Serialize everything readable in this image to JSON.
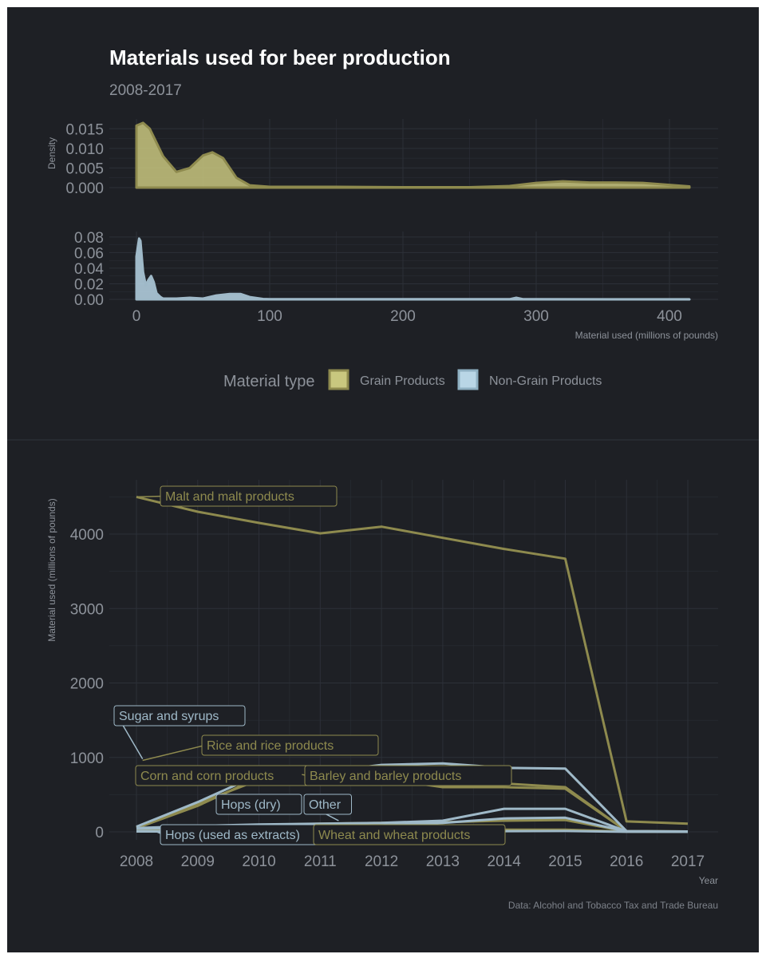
{
  "title": "Materials used for beer production",
  "subtitle": "2008-2017",
  "caption": "Data: Alcohol and Tobacco Tax and Trade Bureau",
  "colors": {
    "background": "#1e2025",
    "grid": "#2c3038",
    "text": "#8d929a",
    "title": "#ffffff",
    "grain": "#8e8a4e",
    "grain_fill": "#c9c77f",
    "nongrain": "#9fb9c8",
    "nongrain_fill": "#b9d6e6"
  },
  "legend": {
    "title": "Material type",
    "items": [
      {
        "label": "Grain Products",
        "color": "#c9c77f",
        "stroke": "#8e8a4e"
      },
      {
        "label": "Non-Grain Products",
        "color": "#b9d6e6",
        "stroke": "#8fb0c2"
      }
    ]
  },
  "chart_data": [
    {
      "type": "area",
      "panel": "density-grain",
      "ylabel": "Density",
      "xlim": [
        0,
        440
      ],
      "ylim": [
        0,
        0.0175
      ],
      "yticks": [
        0,
        0.005,
        0.01,
        0.015
      ],
      "ytick_labels": [
        "0.000",
        "0.005",
        "0.010",
        "0.015"
      ],
      "grid": true,
      "x": [
        0,
        5,
        10,
        20,
        30,
        40,
        50,
        57,
        65,
        75,
        85,
        100,
        150,
        200,
        250,
        280,
        300,
        320,
        340,
        360,
        380,
        400,
        415
      ],
      "y": [
        0.0158,
        0.0165,
        0.015,
        0.008,
        0.004,
        0.005,
        0.0082,
        0.009,
        0.0075,
        0.0025,
        0.0006,
        0.0002,
        0.0002,
        0.0001,
        0.0001,
        0.0004,
        0.0012,
        0.0016,
        0.0013,
        0.0013,
        0.0012,
        0.0007,
        0.0003
      ]
    },
    {
      "type": "area",
      "panel": "density-nongrain",
      "xlabel": "Material used (millions of pounds)",
      "xlim": [
        -22,
        440
      ],
      "xticks": [
        0,
        100,
        200,
        300,
        400
      ],
      "ylim": [
        0,
        0.087
      ],
      "yticks": [
        0,
        0.02,
        0.04,
        0.06,
        0.08
      ],
      "ytick_labels": [
        "0.00",
        "0.02",
        "0.04",
        "0.06",
        "0.08"
      ],
      "grid": true,
      "x": [
        0,
        2,
        3,
        5,
        7,
        9,
        11,
        13,
        15,
        18,
        20,
        30,
        40,
        50,
        60,
        70,
        78,
        85,
        95,
        100,
        200,
        280,
        285,
        290,
        300,
        415
      ],
      "y": [
        0.055,
        0.078,
        0.075,
        0.035,
        0.018,
        0.025,
        0.03,
        0.022,
        0.008,
        0.003,
        0.001,
        0.001,
        0.002,
        0.001,
        0.005,
        0.007,
        0.007,
        0.003,
        0.0005,
        0.0003,
        0.0002,
        0.0002,
        0.002,
        0.0003,
        0.0002,
        0.0001
      ]
    },
    {
      "type": "line",
      "panel": "timeseries",
      "xlabel": "Year",
      "ylabel": "Material used (millions of pounds)",
      "xlim": [
        2007.5,
        2017.4
      ],
      "ylim": [
        -120,
        4750
      ],
      "xticks": [
        2008,
        2009,
        2010,
        2011,
        2012,
        2013,
        2014,
        2015,
        2016,
        2017
      ],
      "yticks": [
        0,
        1000,
        2000,
        3000,
        4000
      ],
      "grid": true,
      "x": [
        2008,
        2009,
        2010,
        2011,
        2012,
        2013,
        2014,
        2015,
        2016,
        2017
      ],
      "series": [
        {
          "name": "Malt and malt products",
          "group": "Grain Products",
          "values": [
            4500,
            4300,
            4150,
            4010,
            4100,
            3950,
            3800,
            3670,
            140,
            110
          ]
        },
        {
          "name": "Corn and corn products",
          "group": "Grain Products",
          "values": [
            60,
            380,
            700,
            650,
            720,
            600,
            600,
            580,
            10,
            5
          ]
        },
        {
          "name": "Rice and rice products",
          "group": "Grain Products",
          "values": [
            50,
            350,
            730,
            720,
            730,
            620,
            650,
            600,
            10,
            5
          ]
        },
        {
          "name": "Barley and barley products",
          "group": "Grain Products",
          "values": [
            30,
            40,
            90,
            110,
            120,
            130,
            150,
            160,
            5,
            3
          ]
        },
        {
          "name": "Wheat and wheat products",
          "group": "Grain Products",
          "values": [
            20,
            20,
            25,
            25,
            30,
            30,
            30,
            30,
            2,
            2
          ]
        },
        {
          "name": "Sugar and syrups",
          "group": "Non-Grain Products",
          "values": [
            70,
            400,
            770,
            800,
            900,
            920,
            860,
            850,
            10,
            5
          ]
        },
        {
          "name": "Other",
          "group": "Non-Grain Products",
          "values": [
            50,
            80,
            100,
            110,
            120,
            150,
            310,
            310,
            8,
            4
          ]
        },
        {
          "name": "Hops (dry)",
          "group": "Non-Grain Products",
          "values": [
            40,
            50,
            60,
            70,
            90,
            120,
            180,
            190,
            5,
            3
          ]
        },
        {
          "name": "Hops (used as extracts)",
          "group": "Non-Grain Products",
          "values": [
            5,
            5,
            5,
            6,
            6,
            8,
            10,
            12,
            1,
            1
          ]
        }
      ],
      "labels": [
        {
          "series": "Malt and malt products",
          "text": "Malt and malt products",
          "at": [
            2008.0,
            4500
          ]
        },
        {
          "series": "Sugar and syrups",
          "text": "Sugar and syrups",
          "at": [
            2008.1,
            980
          ]
        },
        {
          "series": "Rice and rice products",
          "text": "Rice and rice products",
          "at": [
            2008.1,
            960
          ]
        },
        {
          "series": "Corn and corn products",
          "text": "Corn and corn products",
          "at": [
            2008.1,
            770
          ]
        },
        {
          "series": "Barley and barley products",
          "text": "Barley and barley products",
          "at": [
            2010.7,
            770
          ]
        },
        {
          "series": "Hops (dry)",
          "text": "Hops (dry)",
          "at": [
            2009.4,
            310
          ]
        },
        {
          "series": "Other",
          "text": "Other",
          "at": [
            2011.3,
            150
          ]
        },
        {
          "series": "Hops (used as extracts)",
          "text": "Hops (used as extracts)",
          "at": [
            2008.3,
            10
          ]
        },
        {
          "series": "Wheat and wheat products",
          "text": "Wheat and wheat products",
          "at": [
            2011.0,
            20
          ]
        }
      ]
    }
  ]
}
